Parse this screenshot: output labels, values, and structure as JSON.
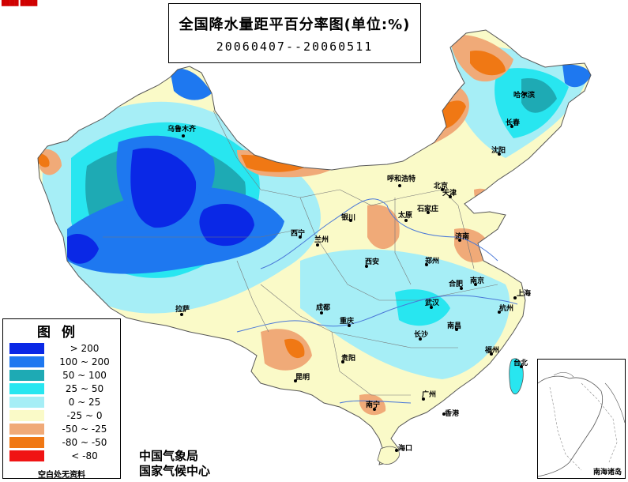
{
  "corner_mark": "████ ████",
  "title": {
    "main": "全国降水量距平百分率图(单位:%)",
    "range": "20060407--20060511"
  },
  "legend": {
    "title": "图例",
    "items": [
      {
        "label": "> 200",
        "color": "#0a28e6"
      },
      {
        "label": "100 ~ 200",
        "color": "#1e78f0"
      },
      {
        "label": "50 ~ 100",
        "color": "#1eaab4"
      },
      {
        "label": "25 ~ 50",
        "color": "#28e6f0"
      },
      {
        "label": "0 ~ 25",
        "color": "#a6eef6"
      },
      {
        "label": "-25 ~ 0",
        "color": "#fafac8"
      },
      {
        "label": "-50 ~ -25",
        "color": "#f0aa78"
      },
      {
        "label": "-80 ~ -50",
        "color": "#f07814"
      },
      {
        "label": "< -80",
        "color": "#f01414"
      }
    ],
    "footnote": "空白处无资料"
  },
  "credits": {
    "line1": "中国气象局",
    "line2": "国家气候中心"
  },
  "inset_label": "南海诸岛",
  "cities": [
    {
      "name": "乌鲁木齐",
      "id": "urumqi"
    },
    {
      "name": "哈尔滨",
      "id": "harbin"
    },
    {
      "name": "长春",
      "id": "changchun"
    },
    {
      "name": "沈阳",
      "id": "shenyang"
    },
    {
      "name": "呼和浩特",
      "id": "hohhot"
    },
    {
      "name": "北京",
      "id": "beijing"
    },
    {
      "name": "天津",
      "id": "tianjin"
    },
    {
      "name": "石家庄",
      "id": "shijiazhuang"
    },
    {
      "name": "太原",
      "id": "taiyuan"
    },
    {
      "name": "银川",
      "id": "yinchuan"
    },
    {
      "name": "济南",
      "id": "jinan"
    },
    {
      "name": "西宁",
      "id": "xining"
    },
    {
      "name": "兰州",
      "id": "lanzhou"
    },
    {
      "name": "西安",
      "id": "xian"
    },
    {
      "name": "郑州",
      "id": "zhengzhou"
    },
    {
      "name": "合肥",
      "id": "hefei"
    },
    {
      "name": "南京",
      "id": "nanjing"
    },
    {
      "name": "上海",
      "id": "shanghai"
    },
    {
      "name": "拉萨",
      "id": "lhasa"
    },
    {
      "name": "成都",
      "id": "chengdu"
    },
    {
      "name": "重庆",
      "id": "chongqing"
    },
    {
      "name": "武汉",
      "id": "wuhan"
    },
    {
      "name": "杭州",
      "id": "hangzhou"
    },
    {
      "name": "南昌",
      "id": "nanchang"
    },
    {
      "name": "长沙",
      "id": "changsha"
    },
    {
      "name": "贵阳",
      "id": "guiyang"
    },
    {
      "name": "福州",
      "id": "fuzhou"
    },
    {
      "name": "台北",
      "id": "taipei"
    },
    {
      "name": "昆明",
      "id": "kunming"
    },
    {
      "name": "南宁",
      "id": "nanning"
    },
    {
      "name": "广州",
      "id": "guangzhou"
    },
    {
      "name": "香港",
      "id": "hongkong"
    },
    {
      "name": "海口",
      "id": "haikou"
    }
  ]
}
